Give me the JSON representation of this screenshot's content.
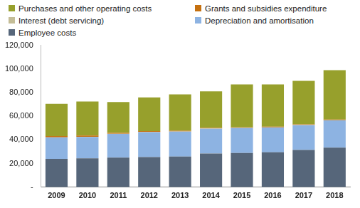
{
  "chart_data": {
    "type": "bar",
    "stacked": true,
    "grid": false,
    "legend": "top",
    "categories": [
      "2009",
      "2010",
      "2011",
      "2012",
      "2013",
      "2014",
      "2015",
      "2016",
      "2017",
      "2018"
    ],
    "series": [
      {
        "name": "Employee costs",
        "color": "#56667a",
        "values": [
          24000,
          24500,
          25000,
          25500,
          26000,
          28500,
          29000,
          29500,
          31500,
          33500
        ]
      },
      {
        "name": "Depreciation and amortisation",
        "color": "#8db3e2",
        "values": [
          18000,
          18000,
          20000,
          21000,
          21000,
          21000,
          21000,
          21000,
          21000,
          23000
        ]
      },
      {
        "name": "Interest (debt servicing)",
        "color": "#c4bd97",
        "values": [
          200,
          200,
          200,
          200,
          200,
          200,
          200,
          200,
          200,
          200
        ]
      },
      {
        "name": "Grants and subsidies expenditure",
        "color": "#c5700f",
        "values": [
          1000,
          1000,
          700,
          800,
          500,
          500,
          500,
          500,
          500,
          500
        ]
      },
      {
        "name": "Purchases and other operating costs",
        "color": "#97a02c",
        "values": [
          27300,
          28800,
          26100,
          28500,
          30800,
          30800,
          36300,
          35800,
          36800,
          41800
        ]
      }
    ],
    "ylim": [
      0,
      120000
    ],
    "yticks": [
      {
        "value": 0,
        "label": "-"
      },
      {
        "value": 20000,
        "label": "20,000"
      },
      {
        "value": 40000,
        "label": "40,000"
      },
      {
        "value": 60000,
        "label": "60,000"
      },
      {
        "value": 80000,
        "label": "80,000"
      },
      {
        "value": 100000,
        "label": "100,000"
      },
      {
        "value": 120000,
        "label": "120,000"
      }
    ]
  }
}
